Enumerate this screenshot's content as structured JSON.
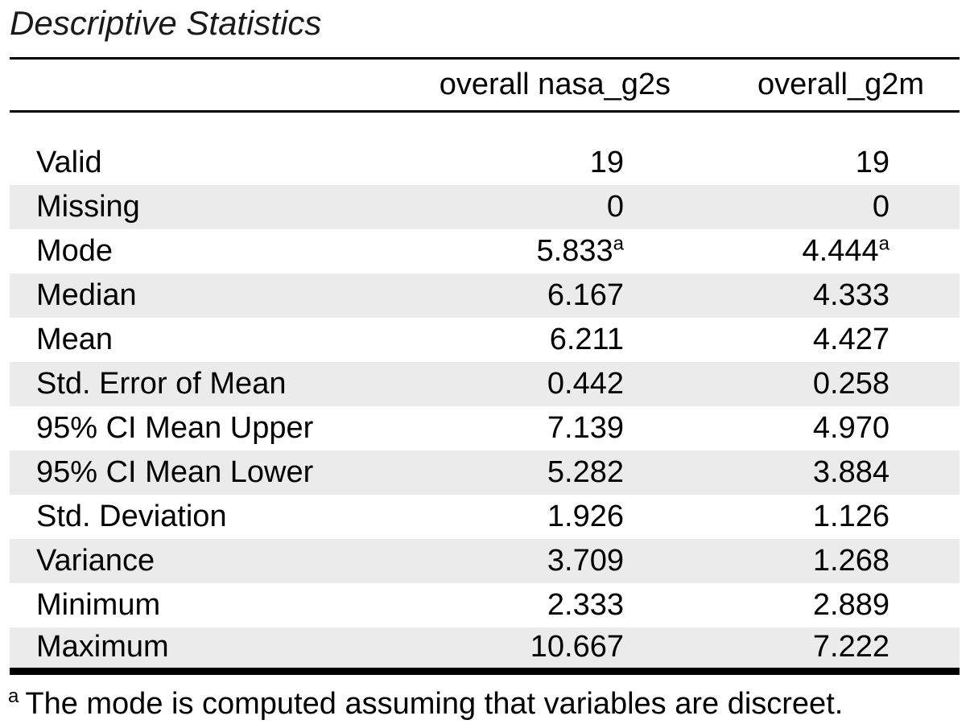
{
  "title": "Descriptive Statistics",
  "colors": {
    "background": "#ffffff",
    "zebra_row": "#ebebeb",
    "rule": "#000000",
    "text": "#000000"
  },
  "chart_data": {
    "type": "table",
    "title": "Descriptive Statistics",
    "columns": [
      "overall nasa_g2s",
      "overall_g2m"
    ],
    "rows": [
      {
        "label": "Valid",
        "values": [
          {
            "v": "19",
            "sup": ""
          },
          {
            "v": "19",
            "sup": ""
          }
        ]
      },
      {
        "label": "Missing",
        "values": [
          {
            "v": "0",
            "sup": ""
          },
          {
            "v": "0",
            "sup": ""
          }
        ]
      },
      {
        "label": "Mode",
        "values": [
          {
            "v": "5.833",
            "sup": "a"
          },
          {
            "v": "4.444",
            "sup": "a"
          }
        ]
      },
      {
        "label": "Median",
        "values": [
          {
            "v": "6.167",
            "sup": ""
          },
          {
            "v": "4.333",
            "sup": ""
          }
        ]
      },
      {
        "label": "Mean",
        "values": [
          {
            "v": "6.211",
            "sup": ""
          },
          {
            "v": "4.427",
            "sup": ""
          }
        ]
      },
      {
        "label": "Std. Error of Mean",
        "values": [
          {
            "v": "0.442",
            "sup": ""
          },
          {
            "v": "0.258",
            "sup": ""
          }
        ]
      },
      {
        "label": "95% CI Mean Upper",
        "values": [
          {
            "v": "7.139",
            "sup": ""
          },
          {
            "v": "4.970",
            "sup": ""
          }
        ]
      },
      {
        "label": "95% CI Mean Lower",
        "values": [
          {
            "v": "5.282",
            "sup": ""
          },
          {
            "v": "3.884",
            "sup": ""
          }
        ]
      },
      {
        "label": "Std. Deviation",
        "values": [
          {
            "v": "1.926",
            "sup": ""
          },
          {
            "v": "1.126",
            "sup": ""
          }
        ]
      },
      {
        "label": "Variance",
        "values": [
          {
            "v": "3.709",
            "sup": ""
          },
          {
            "v": "1.268",
            "sup": ""
          }
        ]
      },
      {
        "label": "Minimum",
        "values": [
          {
            "v": "2.333",
            "sup": ""
          },
          {
            "v": "2.889",
            "sup": ""
          }
        ]
      },
      {
        "label": "Maximum",
        "values": [
          {
            "v": "10.667",
            "sup": ""
          },
          {
            "v": "7.222",
            "sup": ""
          }
        ]
      }
    ],
    "footnote": {
      "marker": "a",
      "text": "The mode is computed assuming that variables are discreet."
    },
    "layout": {
      "zebra_start_row": 2,
      "grid": "horizontal-rules-only",
      "value_alignment": "right"
    }
  }
}
